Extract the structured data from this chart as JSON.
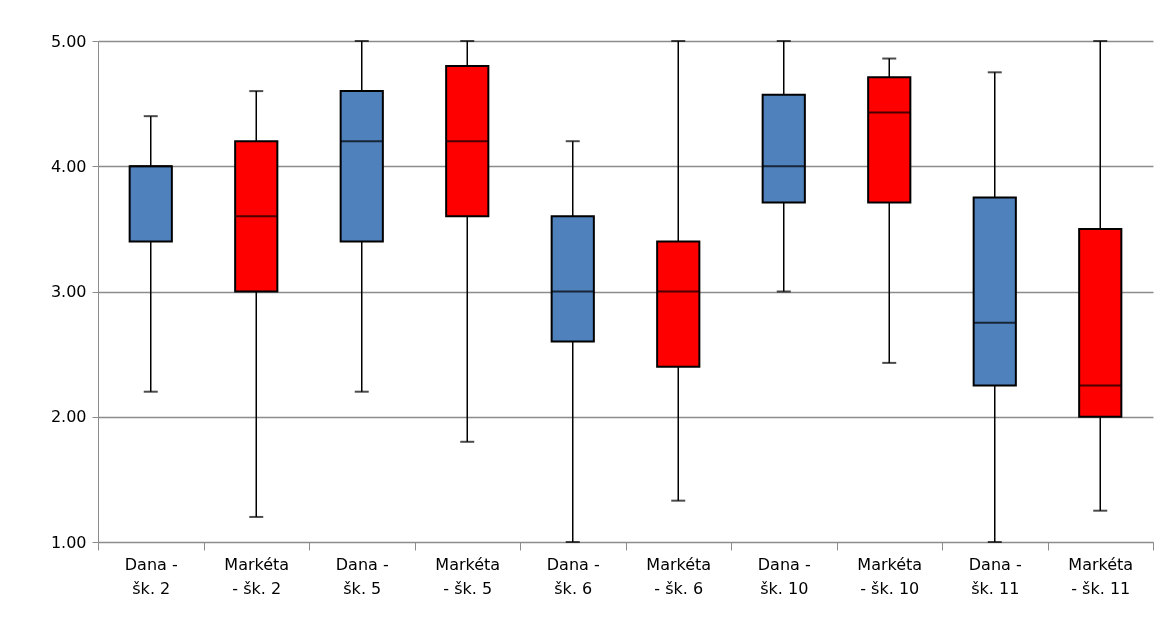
{
  "chart_data": {
    "type": "box",
    "categories": [
      "Dana - šk. 2",
      "Markéta - šk. 2",
      "Dana - šk. 5",
      "Markéta - šk. 5",
      "Dana - šk. 6",
      "Markéta - šk. 6",
      "Dana - šk. 10",
      "Markéta - šk. 10",
      "Dana - šk. 11",
      "Markéta - šk. 11"
    ],
    "boxes": [
      {
        "low": 2.2,
        "q1": 3.4,
        "median": 4.0,
        "q3": 4.0,
        "high": 4.4
      },
      {
        "low": 1.2,
        "q1": 3.0,
        "median": 3.6,
        "q3": 4.2,
        "high": 4.6
      },
      {
        "low": 2.2,
        "q1": 3.4,
        "median": 4.2,
        "q3": 4.6,
        "high": 5.0
      },
      {
        "low": 1.8,
        "q1": 3.6,
        "median": 4.2,
        "q3": 4.8,
        "high": 5.0
      },
      {
        "low": 1.0,
        "q1": 2.6,
        "median": 3.0,
        "q3": 3.6,
        "high": 4.2
      },
      {
        "low": 1.33,
        "q1": 2.4,
        "median": 3.0,
        "q3": 3.4,
        "high": 5.0
      },
      {
        "low": 3.0,
        "q1": 3.71,
        "median": 4.0,
        "q3": 4.57,
        "high": 5.0
      },
      {
        "low": 2.43,
        "q1": 3.71,
        "median": 4.43,
        "q3": 4.71,
        "high": 4.86
      },
      {
        "low": 1.0,
        "q1": 2.25,
        "median": 2.75,
        "q3": 3.75,
        "high": 4.75
      },
      {
        "low": 1.25,
        "q1": 2.0,
        "median": 2.25,
        "q3": 3.5,
        "high": 5.0
      }
    ],
    "colors": [
      "#4f81bd",
      "#ff0000",
      "#4f81bd",
      "#ff0000",
      "#4f81bd",
      "#ff0000",
      "#4f81bd",
      "#ff0000",
      "#4f81bd",
      "#ff0000"
    ],
    "ylim": [
      1,
      5
    ],
    "yticks": [
      {
        "value": 1,
        "label": "1.00"
      },
      {
        "value": 2,
        "label": "2.00"
      },
      {
        "value": 3,
        "label": "3.00"
      },
      {
        "value": 4,
        "label": "4.00"
      },
      {
        "value": 5,
        "label": "5.00"
      }
    ],
    "grid": "y",
    "legend": false
  }
}
